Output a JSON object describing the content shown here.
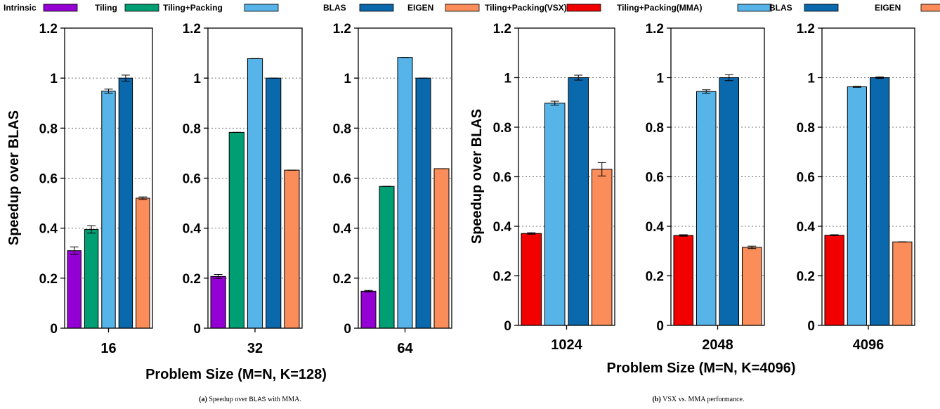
{
  "colors": {
    "intrinsic": "#9400D3",
    "tiling": "#009E73",
    "tiling_packing": "#56B4E9",
    "blas": "#0A68AC",
    "eigen": "#FA8D5A",
    "vsx": "#F20000",
    "grid": "#777777"
  },
  "caption_a": {
    "label": "(a)",
    "text_before": "Speedup over",
    "mono": "BLAS",
    "text_after": "with MMA."
  },
  "caption_b": {
    "label": "(b)",
    "text": "VSX vs. MMA performance."
  },
  "chart_data": [
    {
      "type": "bar",
      "group": "a",
      "xlabel": "Problem Size (M=N, K=128)",
      "ylabel": "Speedup over BLAS",
      "ylim": [
        0,
        1.2
      ],
      "yticks": [
        "0",
        "0.2",
        "0.4",
        "0.6",
        "0.8",
        "1",
        "1.2"
      ],
      "grid": "horizontal dotted",
      "legend": "top",
      "series": [
        {
          "name": "Intrinsic",
          "color_key": "intrinsic"
        },
        {
          "name": "Tiling",
          "color_key": "tiling"
        },
        {
          "name": "Tiling+Packing",
          "color_key": "tiling_packing"
        },
        {
          "name": "BLAS",
          "color_key": "blas"
        },
        {
          "name": "EIGEN",
          "color_key": "eigen"
        }
      ],
      "panels": [
        {
          "category": "16",
          "values": [
            0.31,
            0.395,
            0.948,
            1.0,
            0.52
          ],
          "errors": [
            0.015,
            0.015,
            0.008,
            0.012,
            0.005
          ]
        },
        {
          "category": "32",
          "values": [
            0.207,
            0.783,
            1.078,
            1.0,
            0.632
          ],
          "errors": [
            0.008,
            0.0,
            0.0,
            0.0,
            0.0
          ]
        },
        {
          "category": "64",
          "values": [
            0.148,
            0.567,
            1.083,
            1.0,
            0.638
          ],
          "errors": [
            0.003,
            0.0,
            0.0,
            0.0,
            0.0
          ]
        }
      ]
    },
    {
      "type": "bar",
      "group": "b",
      "xlabel": "Problem Size (M=N, K=4096)",
      "ylabel": "Speedup over BLAS",
      "ylim": [
        0,
        1.2
      ],
      "yticks": [
        "0",
        "0.2",
        "0.4",
        "0.6",
        "0.8",
        "1",
        "1.2"
      ],
      "grid": "horizontal dotted",
      "legend": "top",
      "series": [
        {
          "name": "Tiling+Packing(VSX)",
          "color_key": "vsx"
        },
        {
          "name": "Tiling+Packing(MMA)",
          "color_key": "tiling_packing"
        },
        {
          "name": "BLAS",
          "color_key": "blas"
        },
        {
          "name": "EIGEN",
          "color_key": "eigen"
        }
      ],
      "panels": [
        {
          "category": "1024",
          "values": [
            0.371,
            0.897,
            1.0,
            0.63
          ],
          "errors": [
            0.003,
            0.008,
            0.01,
            0.027
          ]
        },
        {
          "category": "2048",
          "values": [
            0.363,
            0.944,
            1.0,
            0.315
          ],
          "errors": [
            0.003,
            0.007,
            0.012,
            0.005
          ]
        },
        {
          "category": "4096",
          "values": [
            0.364,
            0.963,
            1.0,
            0.337
          ],
          "errors": [
            0.002,
            0.002,
            0.003,
            0.0
          ]
        }
      ]
    }
  ]
}
